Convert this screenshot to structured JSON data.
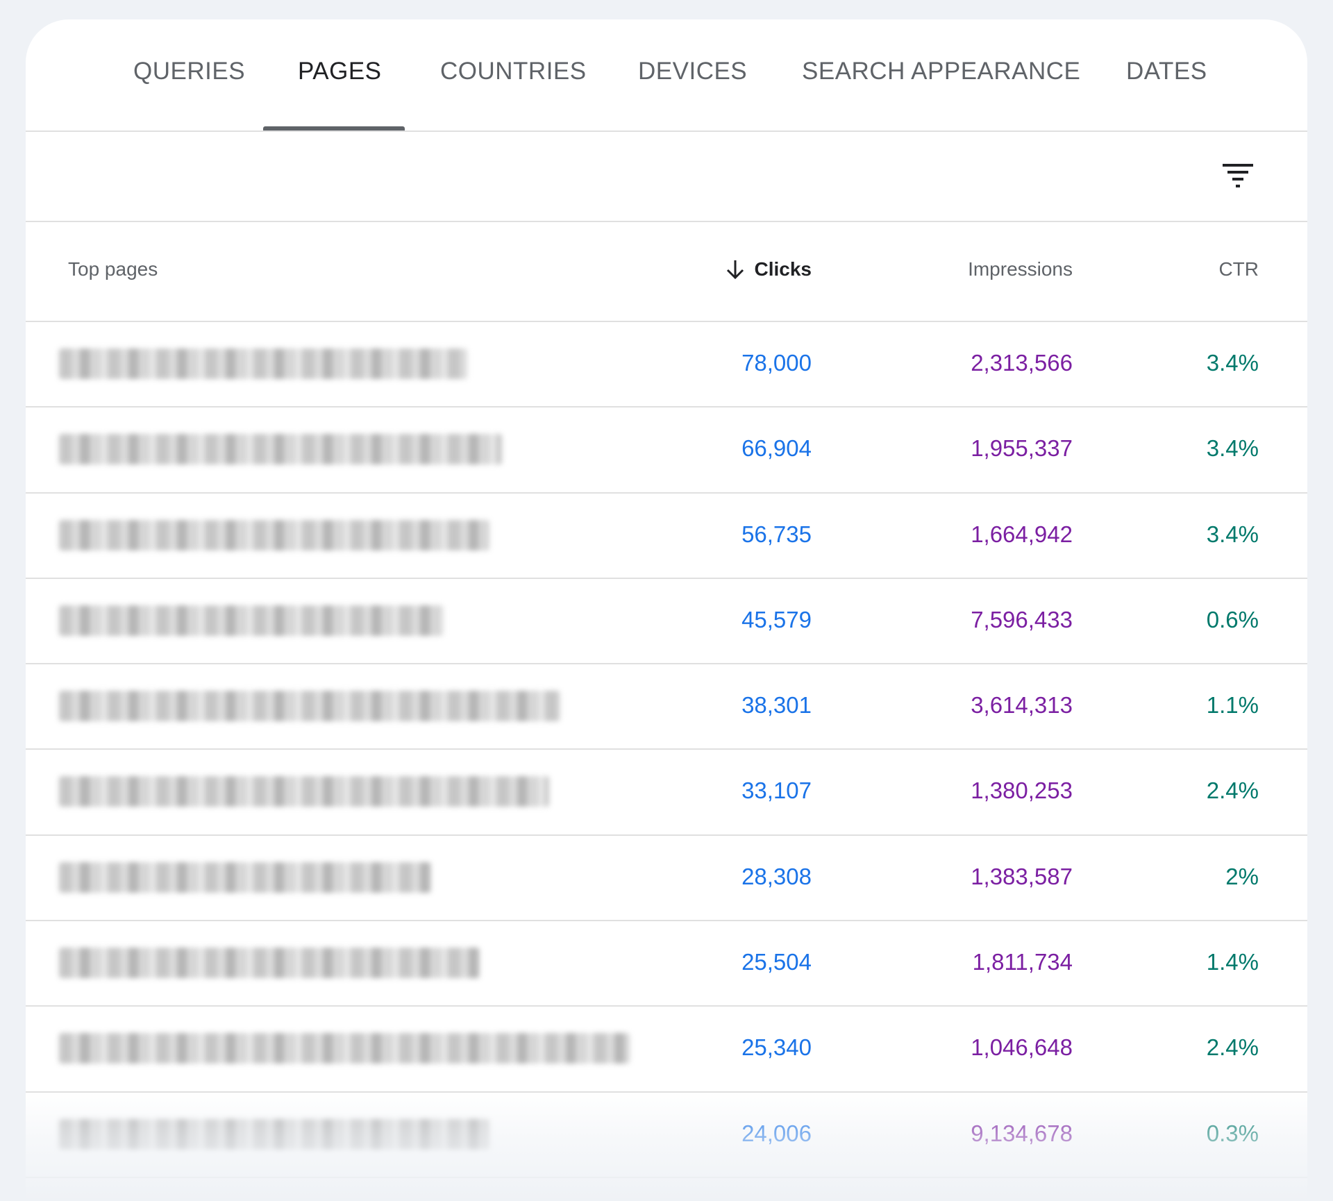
{
  "tabs": [
    {
      "label": "QUERIES",
      "active": false
    },
    {
      "label": "PAGES",
      "active": true
    },
    {
      "label": "COUNTRIES",
      "active": false
    },
    {
      "label": "DEVICES",
      "active": false
    },
    {
      "label": "SEARCH APPEARANCE",
      "active": false
    },
    {
      "label": "DATES",
      "active": false
    }
  ],
  "toolbar": {
    "filter_icon": "filter-icon"
  },
  "table": {
    "columns": {
      "top_pages": "Top pages",
      "clicks": "Clicks",
      "impressions": "Impressions",
      "ctr": "CTR"
    },
    "sorted_column": "clicks",
    "sort_direction": "descending",
    "rows": [
      {
        "clicks": "78,000",
        "impressions": "2,313,566",
        "ctr": "3.4%"
      },
      {
        "clicks": "66,904",
        "impressions": "1,955,337",
        "ctr": "3.4%"
      },
      {
        "clicks": "56,735",
        "impressions": "1,664,942",
        "ctr": "3.4%"
      },
      {
        "clicks": "45,579",
        "impressions": "7,596,433",
        "ctr": "0.6%"
      },
      {
        "clicks": "38,301",
        "impressions": "3,614,313",
        "ctr": "1.1%"
      },
      {
        "clicks": "33,107",
        "impressions": "1,380,253",
        "ctr": "2.4%"
      },
      {
        "clicks": "28,308",
        "impressions": "1,383,587",
        "ctr": "2%"
      },
      {
        "clicks": "25,504",
        "impressions": "1,811,734",
        "ctr": "1.4%"
      },
      {
        "clicks": "25,340",
        "impressions": "1,046,648",
        "ctr": "2.4%"
      },
      {
        "clicks": "24,006",
        "impressions": "9,134,678",
        "ctr": "0.3%"
      }
    ]
  },
  "colors": {
    "clicks": "#1a73e8",
    "impressions": "#7b1fa2",
    "ctr": "#00796b",
    "background": "#eff2f6"
  }
}
